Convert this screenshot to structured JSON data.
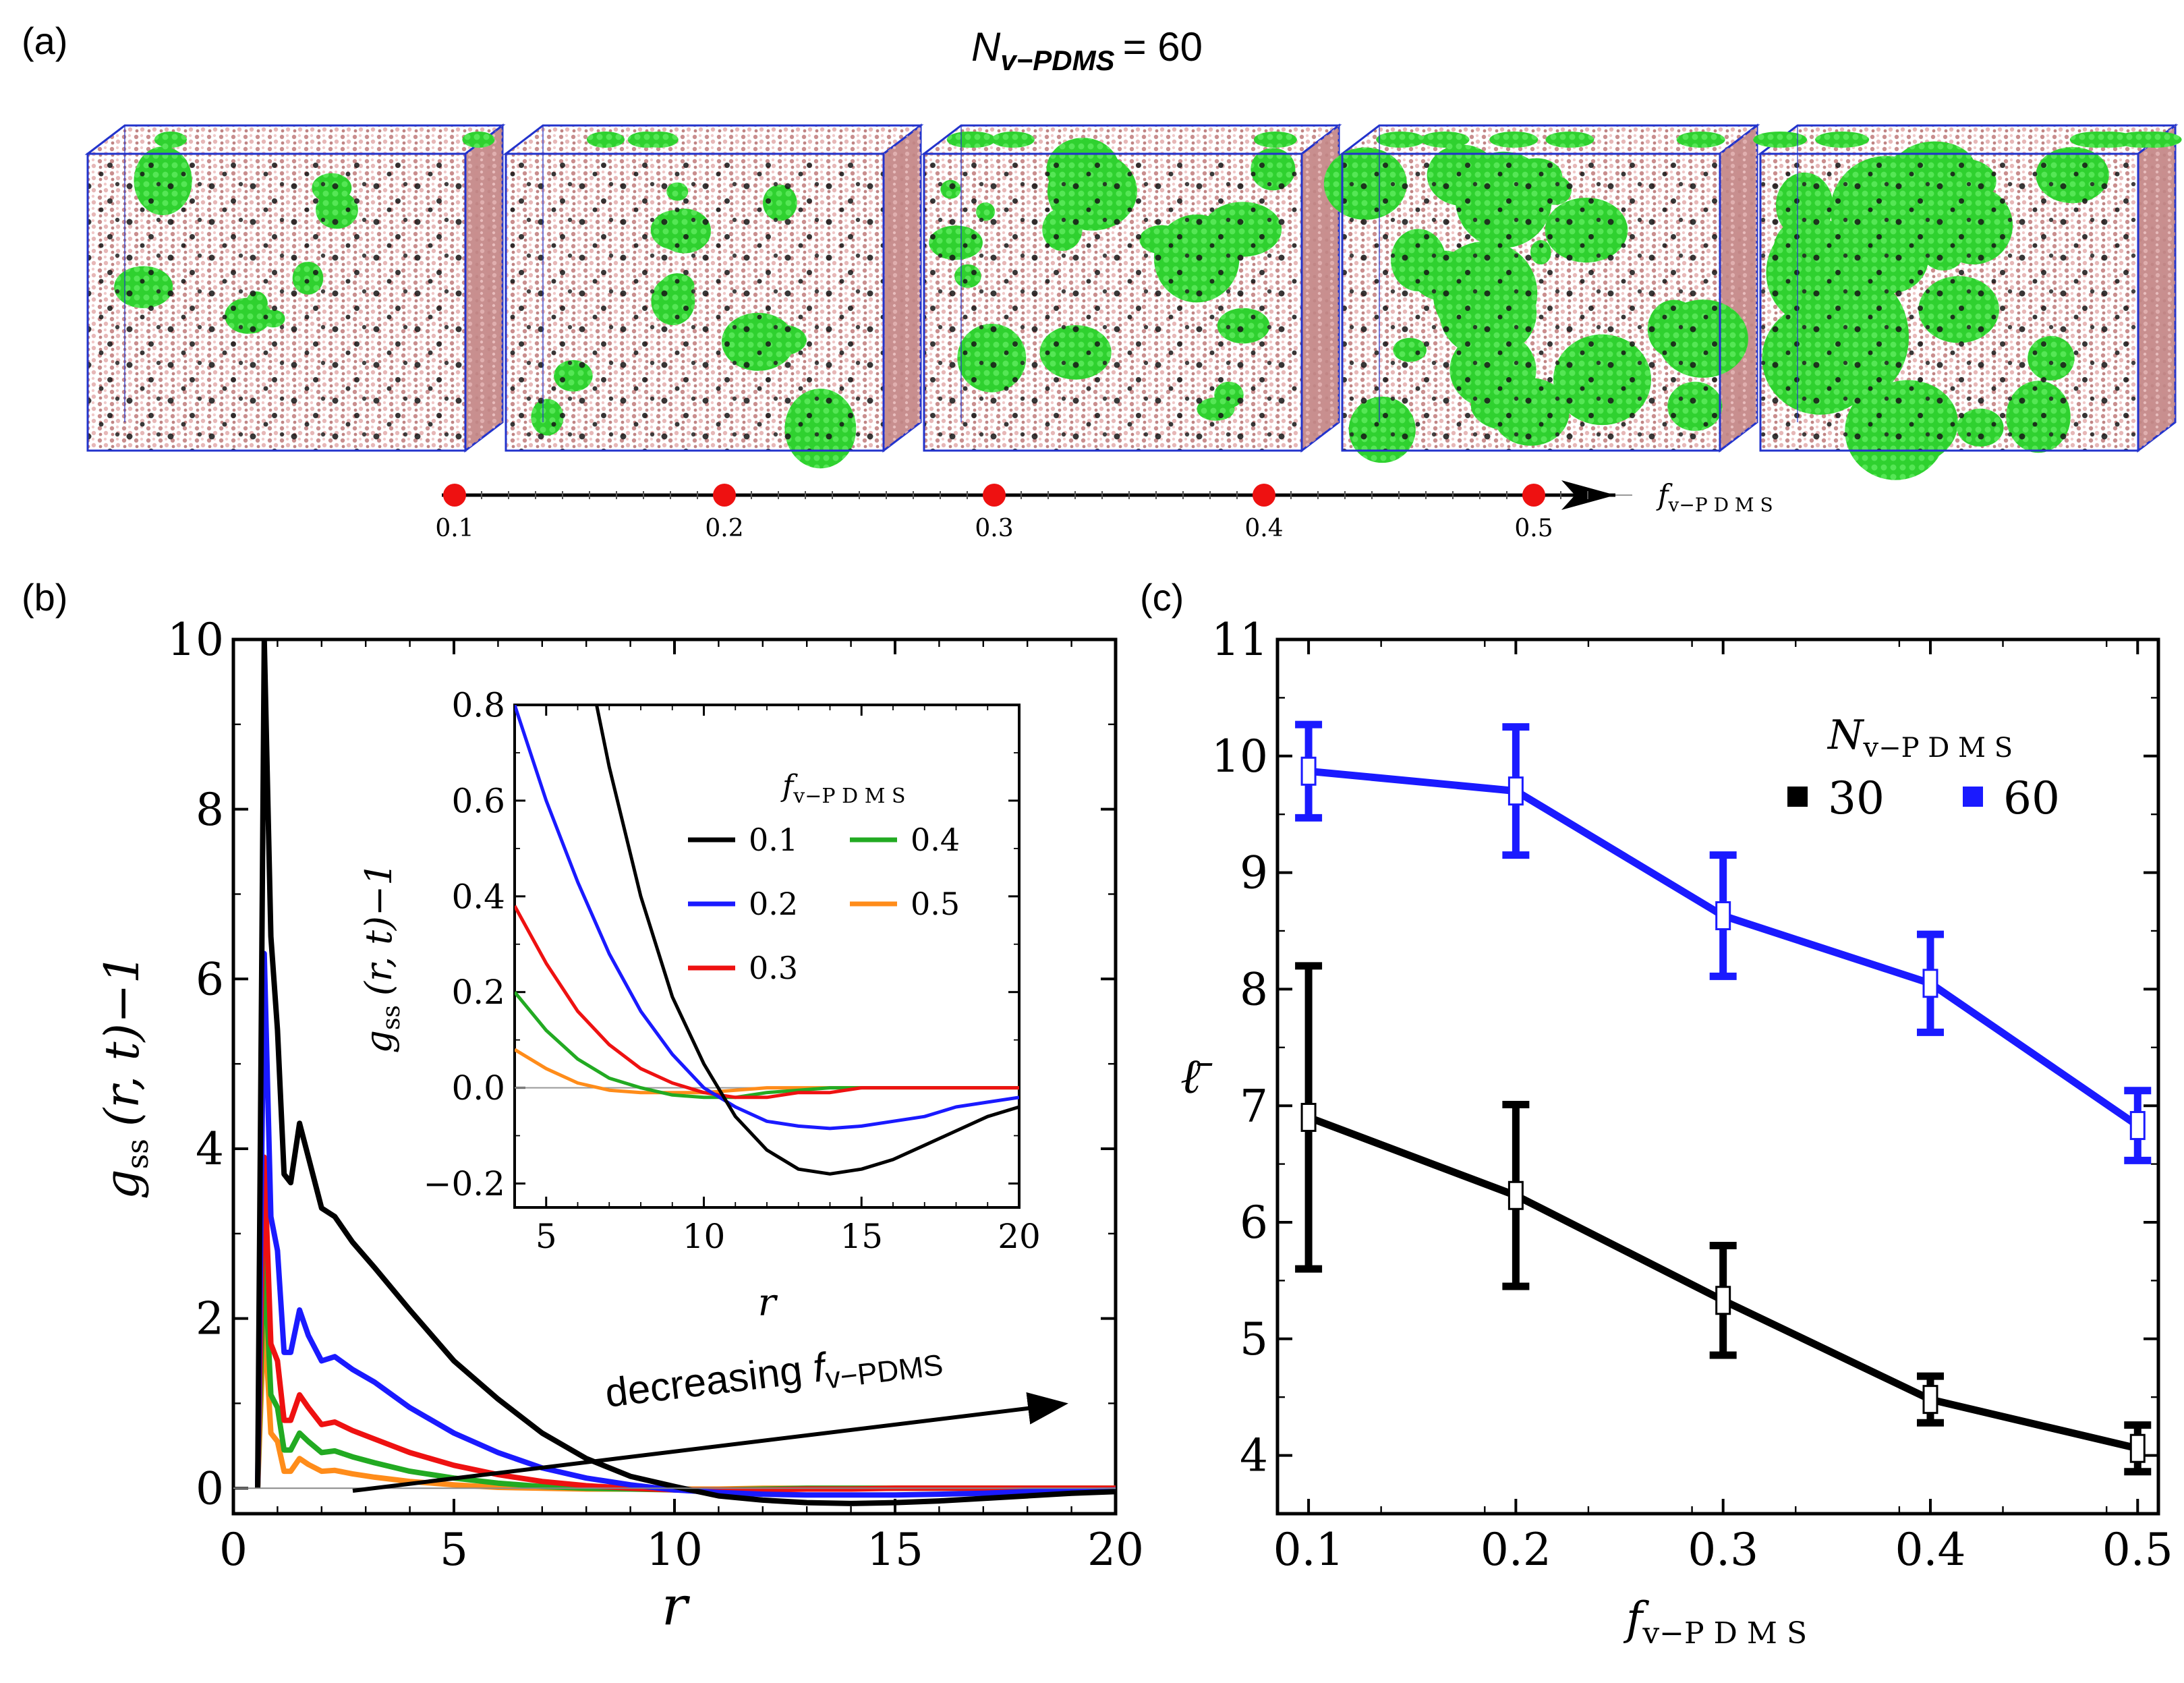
{
  "panel_a": {
    "label": "(a)",
    "title_symbol": "N",
    "title_sub": "v−PDMS",
    "title_value": "= 60",
    "axis_label_symbol": "f",
    "axis_label_sub": "v−P D M S",
    "fractions": [
      "0.1",
      "0.2",
      "0.3",
      "0.4",
      "0.5"
    ],
    "green_coverage": [
      0.1,
      0.2,
      0.3,
      0.4,
      0.5
    ],
    "colors": {
      "matrix": "#d9a3a3",
      "cluster": "#2ecc2e",
      "crosslinker": "#111111",
      "box_edge": "#2233cc",
      "marker": "#ee1111"
    }
  },
  "panel_b": {
    "label": "(b)",
    "annotation": "decreasing ",
    "annotation_symbol": "f",
    "annotation_sub": "v−PDMS",
    "ylabel_main": "g",
    "ylabel_sub": "ss",
    "ylabel_rest": "(r, t)−1",
    "xlabel": "r",
    "inset": {
      "legend_title_symbol": "f",
      "legend_title_sub": "v−P D M S",
      "legend_entries": [
        "0.1",
        "0.2",
        "0.3",
        "0.4",
        "0.5"
      ],
      "ylabel_main": "g",
      "ylabel_sub": "ss",
      "ylabel_rest": "(r, t)−1",
      "xlabel": "r"
    }
  },
  "panel_c": {
    "label": "(c)",
    "ylabel": "ℓ̄",
    "xlabel_symbol": "f",
    "xlabel_sub": "v−P D M S",
    "legend_title_symbol": "N",
    "legend_title_sub": "v−P D M S",
    "legend_entries": [
      "30",
      "60"
    ]
  },
  "chart_data": [
    {
      "type": "line",
      "id": "b-main",
      "xlim": [
        0,
        20
      ],
      "ylim": [
        -0.3,
        10
      ],
      "xticks": [
        0,
        5,
        10,
        15,
        20
      ],
      "yticks": [
        0,
        2,
        4,
        6,
        8,
        10
      ],
      "series": [
        {
          "name": "0.1",
          "color": "#000000",
          "x": [
            0.55,
            0.7,
            0.85,
            1.0,
            1.15,
            1.3,
            1.5,
            1.7,
            2.0,
            2.3,
            2.7,
            3.2,
            4,
            5,
            6,
            7,
            8,
            9,
            10,
            11,
            12,
            13,
            14,
            15,
            16,
            17,
            18,
            19,
            20
          ],
          "y": [
            0,
            10,
            6.5,
            5.4,
            3.7,
            3.6,
            4.3,
            3.9,
            3.3,
            3.2,
            2.9,
            2.6,
            2.1,
            1.5,
            1.05,
            0.65,
            0.35,
            0.14,
            0.02,
            -0.09,
            -0.14,
            -0.17,
            -0.18,
            -0.17,
            -0.15,
            -0.12,
            -0.09,
            -0.06,
            -0.04
          ]
        },
        {
          "name": "0.2",
          "color": "#1a1aff",
          "x": [
            0.55,
            0.7,
            0.85,
            1.0,
            1.15,
            1.3,
            1.5,
            1.7,
            2.0,
            2.3,
            2.7,
            3.2,
            4,
            5,
            6,
            7,
            8,
            9,
            10,
            11,
            12,
            13,
            14,
            15,
            16,
            17,
            18,
            19,
            20
          ],
          "y": [
            0,
            6.3,
            3.2,
            2.8,
            1.6,
            1.6,
            2.1,
            1.8,
            1.5,
            1.55,
            1.4,
            1.25,
            0.95,
            0.65,
            0.42,
            0.24,
            0.12,
            0.04,
            -0.02,
            -0.05,
            -0.07,
            -0.08,
            -0.08,
            -0.08,
            -0.07,
            -0.06,
            -0.04,
            -0.03,
            -0.02
          ]
        },
        {
          "name": "0.3",
          "color": "#ee1111",
          "x": [
            0.55,
            0.7,
            0.85,
            1.0,
            1.15,
            1.3,
            1.5,
            1.7,
            2.0,
            2.3,
            2.7,
            3.2,
            4,
            5,
            6,
            7,
            8,
            9,
            10,
            11,
            12,
            13,
            14,
            15,
            16,
            17,
            18,
            19,
            20
          ],
          "y": [
            0,
            3.9,
            1.7,
            1.5,
            0.8,
            0.8,
            1.1,
            0.95,
            0.75,
            0.78,
            0.68,
            0.58,
            0.42,
            0.27,
            0.16,
            0.08,
            0.03,
            0,
            -0.02,
            -0.02,
            -0.02,
            -0.01,
            -0.01,
            0,
            0,
            0,
            0,
            0,
            0
          ]
        },
        {
          "name": "0.4",
          "color": "#22aa22",
          "x": [
            0.55,
            0.7,
            0.85,
            1.0,
            1.15,
            1.3,
            1.5,
            1.7,
            2.0,
            2.3,
            2.7,
            3.2,
            4,
            5,
            6,
            7,
            8,
            9,
            10,
            11,
            12,
            13,
            14,
            15,
            16,
            17,
            18,
            19,
            20
          ],
          "y": [
            0,
            2.8,
            1.1,
            0.95,
            0.45,
            0.45,
            0.65,
            0.55,
            0.42,
            0.44,
            0.37,
            0.3,
            0.2,
            0.12,
            0.06,
            0.02,
            0,
            -0.01,
            -0.02,
            -0.02,
            -0.01,
            0,
            0,
            0,
            0,
            0,
            0,
            0,
            0
          ]
        },
        {
          "name": "0.5",
          "color": "#ff8c1a",
          "x": [
            0.55,
            0.7,
            0.85,
            1.0,
            1.15,
            1.3,
            1.5,
            1.7,
            2.0,
            2.3,
            2.7,
            3.2,
            4,
            5,
            6,
            7,
            8,
            9,
            10,
            11,
            12,
            13,
            14,
            15,
            16,
            17,
            18,
            19,
            20
          ],
          "y": [
            0,
            2.05,
            0.65,
            0.55,
            0.2,
            0.2,
            0.35,
            0.28,
            0.2,
            0.21,
            0.17,
            0.13,
            0.08,
            0.04,
            0.01,
            0,
            -0.01,
            -0.01,
            -0.01,
            -0.01,
            0,
            0,
            0,
            0,
            0,
            0,
            0,
            0,
            0
          ]
        }
      ]
    },
    {
      "type": "line",
      "id": "b-inset",
      "xlim": [
        4,
        20
      ],
      "ylim": [
        -0.25,
        0.8
      ],
      "xticks": [
        5,
        10,
        15,
        20
      ],
      "yticks": [
        -0.2,
        0.0,
        0.2,
        0.4,
        0.6,
        0.8
      ],
      "series": [
        {
          "name": "0.1",
          "color": "#000000",
          "x": [
            6.6,
            7,
            8,
            9,
            10,
            11,
            12,
            13,
            14,
            15,
            16,
            17,
            18,
            19,
            20
          ],
          "y": [
            0.8,
            0.67,
            0.4,
            0.19,
            0.05,
            -0.06,
            -0.13,
            -0.17,
            -0.18,
            -0.17,
            -0.15,
            -0.12,
            -0.09,
            -0.06,
            -0.04
          ]
        },
        {
          "name": "0.2",
          "color": "#1a1aff",
          "x": [
            4,
            5,
            6,
            7,
            8,
            9,
            10,
            11,
            12,
            13,
            14,
            15,
            16,
            17,
            18,
            19,
            20
          ],
          "y": [
            0.8,
            0.6,
            0.43,
            0.28,
            0.16,
            0.07,
            0,
            -0.04,
            -0.07,
            -0.08,
            -0.085,
            -0.08,
            -0.07,
            -0.06,
            -0.04,
            -0.03,
            -0.02
          ]
        },
        {
          "name": "0.3",
          "color": "#ee1111",
          "x": [
            4,
            5,
            6,
            7,
            8,
            9,
            10,
            11,
            12,
            13,
            14,
            15,
            16,
            17,
            18,
            19,
            20
          ],
          "y": [
            0.38,
            0.26,
            0.16,
            0.09,
            0.04,
            0.01,
            -0.01,
            -0.02,
            -0.02,
            -0.01,
            -0.01,
            0,
            0,
            0,
            0,
            0,
            0
          ]
        },
        {
          "name": "0.4",
          "color": "#22aa22",
          "x": [
            4,
            5,
            6,
            7,
            8,
            9,
            10,
            11,
            12,
            13,
            14,
            15,
            16,
            17,
            18,
            19,
            20
          ],
          "y": [
            0.2,
            0.12,
            0.06,
            0.02,
            0,
            -0.015,
            -0.02,
            -0.02,
            -0.01,
            -0.005,
            0,
            0,
            0,
            0,
            0,
            0,
            0
          ]
        },
        {
          "name": "0.5",
          "color": "#ff8c1a",
          "x": [
            4,
            5,
            6,
            7,
            8,
            9,
            10,
            11,
            12,
            13,
            14,
            15,
            16,
            17,
            18,
            19,
            20
          ],
          "y": [
            0.08,
            0.04,
            0.01,
            -0.005,
            -0.01,
            -0.01,
            -0.01,
            -0.005,
            0,
            0,
            0,
            0,
            0,
            0,
            0,
            0,
            0
          ]
        }
      ]
    },
    {
      "type": "line",
      "id": "c-main",
      "xlim": [
        0.085,
        0.51
      ],
      "ylim": [
        3.5,
        11
      ],
      "xticks": [
        0.1,
        0.2,
        0.3,
        0.4,
        0.5
      ],
      "yticks": [
        4,
        5,
        6,
        7,
        8,
        9,
        10,
        11
      ],
      "series": [
        {
          "name": "60",
          "color": "#1a1aff",
          "x": [
            0.1,
            0.2,
            0.3,
            0.4,
            0.5
          ],
          "y": [
            9.87,
            9.7,
            8.63,
            8.05,
            6.83
          ],
          "err": [
            0.4,
            0.55,
            0.52,
            0.42,
            0.3
          ]
        },
        {
          "name": "30",
          "color": "#000000",
          "x": [
            0.1,
            0.2,
            0.3,
            0.4,
            0.5
          ],
          "y": [
            6.9,
            6.23,
            5.33,
            4.48,
            4.06
          ],
          "err": [
            1.3,
            0.78,
            0.47,
            0.2,
            0.2
          ]
        }
      ]
    }
  ]
}
